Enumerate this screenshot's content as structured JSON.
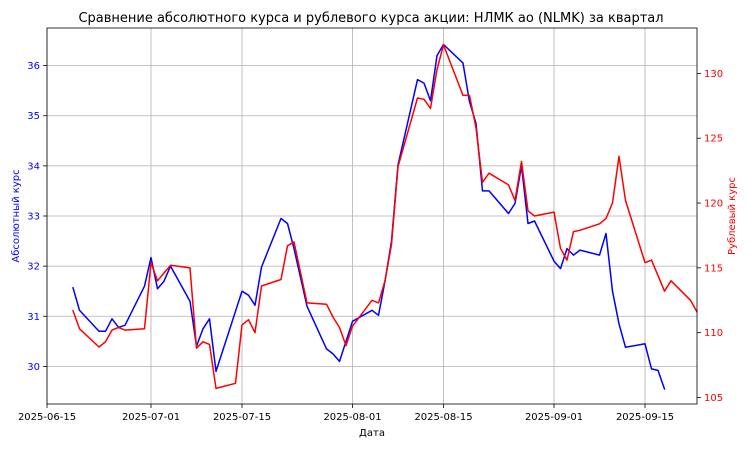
{
  "chart_data": {
    "type": "line",
    "title": "Сравнение абсолютного курса и рублевого курса акции: НЛМК ао (NLMK) за квартал",
    "xlabel": "Дата",
    "ylabel_left": "Абсолютный курс",
    "ylabel_right": "Рублевый курс",
    "grid": true,
    "xlim": [
      "2025-06-15",
      "2025-09-23"
    ],
    "ylim_left": [
      29.25,
      36.75
    ],
    "ylim_right": [
      104.5,
      133.5
    ],
    "x_ticks": [
      "2025-06-15",
      "2025-07-01",
      "2025-07-15",
      "2025-08-01",
      "2025-08-15",
      "2025-09-01",
      "2025-09-15"
    ],
    "y_ticks_left": [
      30,
      31,
      32,
      33,
      34,
      35,
      36
    ],
    "y_ticks_right": [
      105,
      110,
      115,
      120,
      125,
      130
    ],
    "colors": {
      "left": "#0000ff",
      "right": "#ff0000"
    },
    "series": [
      {
        "name": "Абсолютный курс",
        "axis": "left",
        "color": "#0000ff",
        "points": [
          [
            "2025-06-19",
            31.57
          ],
          [
            "2025-06-20",
            31.12
          ],
          [
            "2025-06-23",
            30.7
          ],
          [
            "2025-06-24",
            30.7
          ],
          [
            "2025-06-25",
            30.95
          ],
          [
            "2025-06-26",
            30.78
          ],
          [
            "2025-06-27",
            30.82
          ],
          [
            "2025-06-30",
            31.6
          ],
          [
            "2025-07-01",
            32.17
          ],
          [
            "2025-07-02",
            31.55
          ],
          [
            "2025-07-03",
            31.7
          ],
          [
            "2025-07-04",
            32.0
          ],
          [
            "2025-07-07",
            31.3
          ],
          [
            "2025-07-08",
            30.4
          ],
          [
            "2025-07-09",
            30.75
          ],
          [
            "2025-07-10",
            30.95
          ],
          [
            "2025-07-11",
            29.9
          ],
          [
            "2025-07-14",
            31.1
          ],
          [
            "2025-07-15",
            31.5
          ],
          [
            "2025-07-16",
            31.42
          ],
          [
            "2025-07-17",
            31.22
          ],
          [
            "2025-07-18",
            31.98
          ],
          [
            "2025-07-21",
            32.95
          ],
          [
            "2025-07-22",
            32.85
          ],
          [
            "2025-07-23",
            32.35
          ],
          [
            "2025-07-25",
            31.2
          ],
          [
            "2025-07-28",
            30.35
          ],
          [
            "2025-07-29",
            30.25
          ],
          [
            "2025-07-30",
            30.1
          ],
          [
            "2025-07-31",
            30.5
          ],
          [
            "2025-08-01",
            30.9
          ],
          [
            "2025-08-04",
            31.12
          ],
          [
            "2025-08-05",
            31.02
          ],
          [
            "2025-08-06",
            31.7
          ],
          [
            "2025-08-07",
            32.5
          ],
          [
            "2025-08-08",
            34.02
          ],
          [
            "2025-08-11",
            35.72
          ],
          [
            "2025-08-12",
            35.65
          ],
          [
            "2025-08-13",
            35.3
          ],
          [
            "2025-08-14",
            36.2
          ],
          [
            "2025-08-15",
            36.42
          ],
          [
            "2025-08-18",
            36.05
          ],
          [
            "2025-08-19",
            35.28
          ],
          [
            "2025-08-20",
            34.85
          ],
          [
            "2025-08-21",
            33.5
          ],
          [
            "2025-08-22",
            33.5
          ],
          [
            "2025-08-25",
            33.05
          ],
          [
            "2025-08-26",
            33.25
          ],
          [
            "2025-08-27",
            34.0
          ],
          [
            "2025-08-28",
            32.85
          ],
          [
            "2025-08-29",
            32.9
          ],
          [
            "2025-09-01",
            32.1
          ],
          [
            "2025-09-02",
            31.95
          ],
          [
            "2025-09-03",
            32.35
          ],
          [
            "2025-09-04",
            32.22
          ],
          [
            "2025-09-05",
            32.32
          ],
          [
            "2025-09-08",
            32.22
          ],
          [
            "2025-09-09",
            32.65
          ],
          [
            "2025-09-10",
            31.5
          ],
          [
            "2025-09-11",
            30.85
          ],
          [
            "2025-09-12",
            30.38
          ],
          [
            "2025-09-15",
            30.45
          ],
          [
            "2025-09-16",
            29.95
          ],
          [
            "2025-09-17",
            29.92
          ],
          [
            "2025-09-18",
            29.55
          ]
        ]
      },
      {
        "name": "Рублевый курс",
        "axis": "right",
        "color": "#ff0000",
        "points": [
          [
            "2025-06-19",
            111.7
          ],
          [
            "2025-06-20",
            110.3
          ],
          [
            "2025-06-23",
            108.9
          ],
          [
            "2025-06-24",
            109.3
          ],
          [
            "2025-06-25",
            110.2
          ],
          [
            "2025-06-26",
            110.4
          ],
          [
            "2025-06-27",
            110.2
          ],
          [
            "2025-06-30",
            110.3
          ],
          [
            "2025-07-01",
            115.4
          ],
          [
            "2025-07-02",
            114.0
          ],
          [
            "2025-07-03",
            114.6
          ],
          [
            "2025-07-04",
            115.2
          ],
          [
            "2025-07-07",
            115.0
          ],
          [
            "2025-07-08",
            108.8
          ],
          [
            "2025-07-09",
            109.3
          ],
          [
            "2025-07-10",
            109.1
          ],
          [
            "2025-07-11",
            105.7
          ],
          [
            "2025-07-14",
            106.1
          ],
          [
            "2025-07-15",
            110.6
          ],
          [
            "2025-07-16",
            111.0
          ],
          [
            "2025-07-17",
            110.0
          ],
          [
            "2025-07-18",
            113.6
          ],
          [
            "2025-07-21",
            114.1
          ],
          [
            "2025-07-22",
            116.7
          ],
          [
            "2025-07-23",
            117.0
          ],
          [
            "2025-07-25",
            112.3
          ],
          [
            "2025-07-28",
            112.2
          ],
          [
            "2025-07-29",
            111.2
          ],
          [
            "2025-07-30",
            110.4
          ],
          [
            "2025-07-31",
            109.0
          ],
          [
            "2025-08-01",
            110.5
          ],
          [
            "2025-08-04",
            112.5
          ],
          [
            "2025-08-05",
            112.3
          ],
          [
            "2025-08-06",
            114.0
          ],
          [
            "2025-08-07",
            116.8
          ],
          [
            "2025-08-08",
            122.8
          ],
          [
            "2025-08-11",
            128.1
          ],
          [
            "2025-08-12",
            128.0
          ],
          [
            "2025-08-13",
            127.3
          ],
          [
            "2025-08-14",
            130.3
          ],
          [
            "2025-08-15",
            132.2
          ],
          [
            "2025-08-18",
            128.3
          ],
          [
            "2025-08-19",
            128.3
          ],
          [
            "2025-08-20",
            125.8
          ],
          [
            "2025-08-21",
            121.6
          ],
          [
            "2025-08-22",
            122.3
          ],
          [
            "2025-08-25",
            121.4
          ],
          [
            "2025-08-26",
            120.2
          ],
          [
            "2025-08-27",
            123.2
          ],
          [
            "2025-08-28",
            119.4
          ],
          [
            "2025-08-29",
            119.0
          ],
          [
            "2025-09-01",
            119.3
          ],
          [
            "2025-09-02",
            116.5
          ],
          [
            "2025-09-03",
            115.6
          ],
          [
            "2025-09-04",
            117.8
          ],
          [
            "2025-09-05",
            117.9
          ],
          [
            "2025-09-08",
            118.4
          ],
          [
            "2025-09-09",
            118.8
          ],
          [
            "2025-09-10",
            120.0
          ],
          [
            "2025-09-11",
            123.6
          ],
          [
            "2025-09-12",
            120.2
          ],
          [
            "2025-09-15",
            115.4
          ],
          [
            "2025-09-16",
            115.6
          ],
          [
            "2025-09-17",
            114.4
          ],
          [
            "2025-09-18",
            113.2
          ],
          [
            "2025-09-19",
            114.0
          ],
          [
            "2025-09-22",
            112.5
          ],
          [
            "2025-09-23",
            111.6
          ]
        ]
      }
    ]
  }
}
